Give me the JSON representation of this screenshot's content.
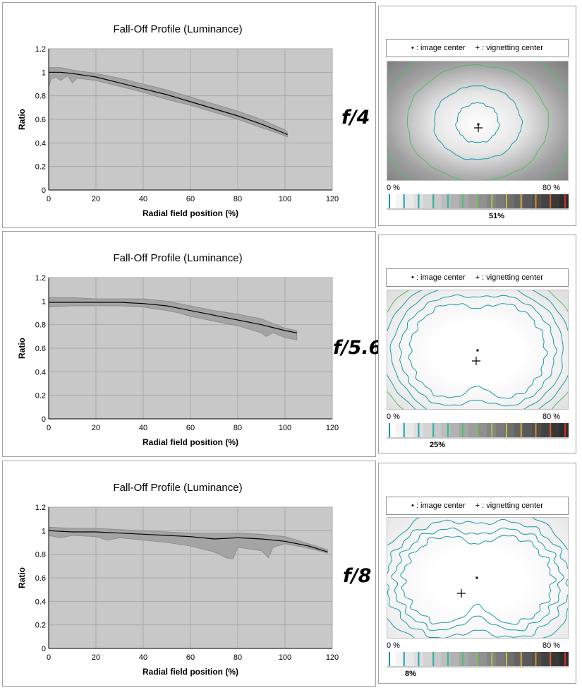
{
  "chart_data": [
    {
      "type": "area",
      "title": "Fall-Off Profile (Luminance)",
      "xlabel": "Radial field position (%)",
      "ylabel": "Ratio",
      "xlim": [
        0,
        120
      ],
      "ylim": [
        0,
        1.2
      ],
      "xticks": [
        "0",
        "20",
        "40",
        "60",
        "80",
        "100",
        "120"
      ],
      "yticks": [
        "0",
        "0.2",
        "0.4",
        "0.6",
        "0.8",
        "1",
        "1.2"
      ],
      "grid": true,
      "series": [
        {
          "x": [
            0,
            5,
            10,
            20,
            30,
            40,
            50,
            60,
            70,
            80,
            90,
            100,
            101
          ],
          "values": [
            1.0,
            1.0,
            0.99,
            0.96,
            0.91,
            0.86,
            0.81,
            0.75,
            0.69,
            0.63,
            0.56,
            0.48,
            0.47
          ]
        },
        {
          "x": [
            0,
            5,
            10,
            20,
            30,
            40,
            50,
            60,
            70,
            80,
            90,
            100,
            101
          ],
          "values": [
            1.04,
            1.04,
            1.02,
            0.99,
            0.95,
            0.9,
            0.85,
            0.79,
            0.73,
            0.67,
            0.6,
            0.51,
            0.49
          ]
        },
        {
          "x": [
            0,
            1,
            3,
            5,
            8,
            10,
            12,
            20,
            30,
            40,
            50,
            60,
            70,
            80,
            90,
            100,
            101
          ],
          "values": [
            0.87,
            0.94,
            0.96,
            0.93,
            0.97,
            0.91,
            0.95,
            0.93,
            0.88,
            0.83,
            0.77,
            0.72,
            0.66,
            0.6,
            0.53,
            0.46,
            0.45
          ]
        }
      ],
      "aperture": "f/4",
      "map": {
        "legend": [
          "• : image center",
          "+ : vignetting center"
        ],
        "scale_left": "0 %",
        "scale_right": "80 %",
        "percent": "51%"
      }
    },
    {
      "type": "area",
      "title": "Fall-Off Profile (Luminance)",
      "xlabel": "Radial field position (%)",
      "ylabel": "Ratio",
      "xlim": [
        0,
        120
      ],
      "ylim": [
        0,
        1.2
      ],
      "xticks": [
        "0",
        "20",
        "40",
        "60",
        "80",
        "100",
        "120"
      ],
      "yticks": [
        "0",
        "0.2",
        "0.4",
        "0.6",
        "0.8",
        "1",
        "1.2"
      ],
      "grid": true,
      "series": [
        {
          "x": [
            0,
            10,
            20,
            30,
            40,
            50,
            55,
            60,
            70,
            80,
            90,
            100,
            105
          ],
          "values": [
            0.99,
            0.99,
            0.99,
            0.99,
            0.98,
            0.96,
            0.94,
            0.92,
            0.88,
            0.84,
            0.8,
            0.75,
            0.73
          ]
        },
        {
          "x": [
            0,
            10,
            20,
            30,
            40,
            50,
            55,
            60,
            70,
            80,
            90,
            100,
            105
          ],
          "values": [
            1.03,
            1.03,
            1.02,
            1.02,
            1.02,
            1.0,
            0.98,
            0.96,
            0.92,
            0.89,
            0.85,
            0.77,
            0.75
          ]
        },
        {
          "x": [
            0,
            10,
            20,
            30,
            40,
            50,
            55,
            60,
            70,
            80,
            90,
            92,
            95,
            100,
            105
          ],
          "values": [
            0.95,
            0.96,
            0.96,
            0.96,
            0.95,
            0.92,
            0.9,
            0.87,
            0.83,
            0.79,
            0.73,
            0.7,
            0.73,
            0.69,
            0.67
          ]
        }
      ],
      "aperture": "f/5.6",
      "map": {
        "legend": [
          "• : image center",
          "+ : vignetting center"
        ],
        "scale_left": "0 %",
        "scale_right": "80 %",
        "percent": "25%"
      }
    },
    {
      "type": "area",
      "title": "Fall-Off Profile (Luminance)",
      "xlabel": "Radial field position (%)",
      "ylabel": "Ratio",
      "xlim": [
        0,
        120
      ],
      "ylim": [
        0,
        1.2
      ],
      "xticks": [
        "0",
        "20",
        "40",
        "60",
        "80",
        "100",
        "120"
      ],
      "yticks": [
        "0",
        "0.2",
        "0.4",
        "0.6",
        "0.8",
        "1",
        "1.2"
      ],
      "grid": true,
      "series": [
        {
          "x": [
            0,
            10,
            20,
            30,
            40,
            50,
            60,
            70,
            80,
            90,
            100,
            110,
            118
          ],
          "values": [
            1.0,
            0.99,
            0.99,
            0.98,
            0.97,
            0.96,
            0.95,
            0.93,
            0.94,
            0.93,
            0.91,
            0.87,
            0.82
          ]
        },
        {
          "x": [
            0,
            10,
            20,
            30,
            40,
            50,
            60,
            70,
            80,
            90,
            100,
            110,
            118
          ],
          "values": [
            1.03,
            1.02,
            1.02,
            1.01,
            1.0,
            0.99,
            0.98,
            0.98,
            0.98,
            0.97,
            0.95,
            0.89,
            0.84
          ]
        },
        {
          "x": [
            0,
            5,
            10,
            20,
            25,
            30,
            40,
            50,
            60,
            70,
            75,
            78,
            80,
            90,
            93,
            95,
            100,
            110,
            118
          ],
          "values": [
            0.96,
            0.94,
            0.96,
            0.95,
            0.92,
            0.94,
            0.92,
            0.9,
            0.87,
            0.82,
            0.77,
            0.76,
            0.86,
            0.83,
            0.77,
            0.86,
            0.89,
            0.85,
            0.81
          ]
        }
      ],
      "aperture": "f/8",
      "map": {
        "legend": [
          "• : image center",
          "+ : vignetting center"
        ],
        "scale_left": "0 %",
        "scale_right": "80 %",
        "percent": "8%"
      }
    }
  ],
  "scale_colors": [
    "#1a8ca8",
    "#1a9cb0",
    "#22a8b0",
    "#2ab0a0",
    "#30b890",
    "#48c070",
    "#70c850",
    "#a0c840",
    "#c8c040",
    "#d8a830",
    "#d88830",
    "#d86028",
    "#d03020"
  ],
  "colors": {
    "plot_bg": "#c8c8c8",
    "band": "#a4a4a4",
    "grid": "#a8a8a8",
    "line": "#000000",
    "contour_teal": "#1a9aa8",
    "contour_green": "#48c060"
  }
}
